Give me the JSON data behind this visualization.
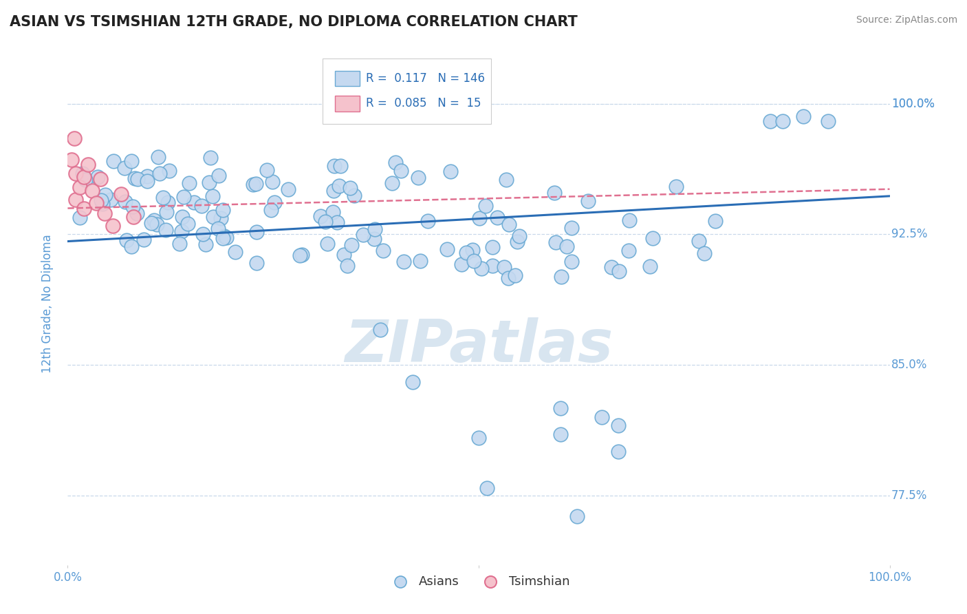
{
  "title": "ASIAN VS TSIMSHIAN 12TH GRADE, NO DIPLOMA CORRELATION CHART",
  "source_text": "Source: ZipAtlas.com",
  "ylabel": "12th Grade, No Diploma",
  "xlim": [
    0.0,
    1.0
  ],
  "ylim": [
    0.735,
    1.035
  ],
  "yticks": [
    0.775,
    0.85,
    0.925,
    1.0
  ],
  "ytick_labels": [
    "77.5%",
    "85.0%",
    "92.5%",
    "100.0%"
  ],
  "xtick_labels": [
    "0.0%",
    "100.0%"
  ],
  "asian_R": 0.117,
  "asian_N": 146,
  "tsimshian_R": 0.085,
  "tsimshian_N": 15,
  "asian_color": "#c5d9f0",
  "asian_edge_color": "#6aaad4",
  "tsimshian_color": "#f5c2cc",
  "tsimshian_edge_color": "#e07090",
  "asian_line_color": "#2a6db5",
  "tsimshian_line_color": "#e07090",
  "grid_color": "#c8d8ea",
  "background_color": "#ffffff",
  "watermark_color": "#d8e5f0",
  "tick_color": "#5b9bd5",
  "ylabel_color": "#5b9bd5"
}
